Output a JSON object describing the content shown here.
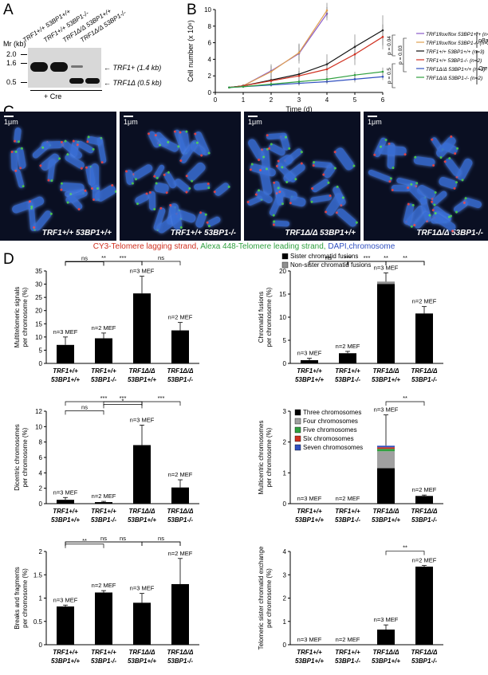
{
  "panels": {
    "a": "A",
    "b": "B",
    "c": "C",
    "d": "D"
  },
  "panelA": {
    "mr_label": "Mr (kb)",
    "ticks": [
      "2.0",
      "1.6",
      "0.5"
    ],
    "lanes": [
      "TRF1+/+ 53BP1+/+",
      "TRF1+/+ 53BP1-/-",
      "TRF1Δ/Δ 53BP1+/+",
      "TRF1Δ/Δ 53BP1-/-"
    ],
    "band_top": "TRF1+ (1.4 kb)",
    "band_bottom": "TRF1Δ (0.5 kb)",
    "treatment": "+ Cre"
  },
  "panelB": {
    "chart_data": {
      "type": "line",
      "xlabel": "Time (d)",
      "ylabel": "Cell number (x 10⁶)",
      "x": [
        0,
        1,
        2,
        3,
        4,
        5,
        6
      ],
      "xlim": [
        0,
        6
      ],
      "ylim": [
        0,
        10
      ],
      "yticks": [
        0,
        2,
        4,
        6,
        8,
        10
      ],
      "series": [
        {
          "name": "TRF1flox/flox 53BP1+/+ (n=2)",
          "color": "#8a5ac8",
          "x": [
            0.5,
            1,
            2,
            3,
            4
          ],
          "y": [
            0.6,
            0.8,
            2.6,
            4.7,
            9.5
          ],
          "err": [
            0,
            0.1,
            0.8,
            1.2,
            0.8
          ]
        },
        {
          "name": "TRF1flox/flox 53BP1-/- (n=2)",
          "color": "#e0a050",
          "x": [
            0.5,
            1,
            2,
            3,
            4
          ],
          "y": [
            0.6,
            0.8,
            2.5,
            4.8,
            9.9
          ],
          "err": [
            0,
            0.1,
            0.7,
            1.0,
            0.9
          ]
        },
        {
          "name": "TRF1+/+ 53BP1+/+ (n=3)",
          "color": "#111111",
          "x": [
            0.5,
            1,
            2,
            3,
            4,
            5,
            6
          ],
          "y": [
            0.6,
            0.8,
            1.5,
            2.2,
            3.4,
            5.5,
            7.5
          ],
          "err": [
            0,
            0.2,
            0.5,
            0.8,
            1.2,
            1.5,
            1.8
          ]
        },
        {
          "name": "TRF1+/+ 53BP1-/- (n=2)",
          "color": "#d03020",
          "x": [
            0.5,
            1,
            2,
            3,
            4,
            5,
            6
          ],
          "y": [
            0.6,
            0.8,
            1.4,
            2.0,
            2.8,
            4.6,
            6.7
          ],
          "err": [
            0,
            0.1,
            0.4,
            0.6,
            1.0,
            1.3,
            1.5
          ]
        },
        {
          "name": "TRF1Δ/Δ 53BP1+/+ (n=3)",
          "color": "#3050c0",
          "x": [
            0.5,
            1,
            2,
            3,
            4,
            5,
            6
          ],
          "y": [
            0.6,
            0.7,
            0.9,
            1.1,
            1.3,
            1.6,
            1.9
          ],
          "err": [
            0,
            0.1,
            0.2,
            0.3,
            0.3,
            0.4,
            0.4
          ]
        },
        {
          "name": "TRF1Δ/Δ 53BP1-/- (n=2)",
          "color": "#30a040",
          "x": [
            0.5,
            1,
            2,
            3,
            4,
            5,
            6
          ],
          "y": [
            0.6,
            0.7,
            1.0,
            1.3,
            1.6,
            2.1,
            2.5
          ],
          "err": [
            0,
            0.1,
            0.2,
            0.3,
            0.4,
            0.4,
            0.5
          ]
        }
      ],
      "group_pbabe": "pBabe",
      "group_cre": "Cre",
      "pvalues": [
        "p = 0.04",
        "p = 0.03",
        "p = 0.5"
      ]
    }
  },
  "panelC": {
    "images": [
      {
        "scale": "1μm",
        "caption": "TRF1+/+ 53BP1+/+"
      },
      {
        "scale": "1μm",
        "caption": "TRF1+/+ 53BP1-/-"
      },
      {
        "scale": "1μm",
        "caption": "TRF1Δ/Δ 53BP1+/+"
      },
      {
        "scale": "1μm",
        "caption": "TRF1Δ/Δ 53BP1-/-"
      }
    ],
    "legend_red": "CY3-Telomere lagging strand,",
    "legend_green": " Alexa 448-Telomere leading strand,",
    "legend_blue": " DAPI,chromosome",
    "colors": {
      "red": "#d03020",
      "green": "#30a040",
      "blue": "#3050c0"
    }
  },
  "panelD": {
    "categories": [
      [
        "TRF1+/+",
        "53BP1+/+"
      ],
      [
        "TRF1+/+",
        "53BP1-/-"
      ],
      [
        "TRF1Δ/Δ",
        "53BP1+/+"
      ],
      [
        "TRF1Δ/Δ",
        "53BP1-/-"
      ]
    ],
    "chart_data": [
      {
        "type": "bar",
        "ylabel": "Multitelomeric signals per chromosome (%)",
        "ylim": [
          0,
          35
        ],
        "yticks": [
          0,
          5,
          10,
          15,
          20,
          25,
          30,
          35
        ],
        "values": [
          7,
          9.5,
          26.5,
          12.5
        ],
        "err": [
          3,
          2,
          6.5,
          3
        ],
        "n": [
          "n=3 MEF",
          "n=2 MEF",
          "n=3 MEF",
          "n=2 MEF"
        ],
        "sig": [
          {
            "a": 0,
            "b": 1,
            "t": "ns"
          },
          {
            "a": 1,
            "b": 2,
            "t": "***"
          },
          {
            "a": 0,
            "b": 2,
            "t": "**"
          },
          {
            "a": 2,
            "b": 3,
            "t": "ns"
          }
        ]
      },
      {
        "type": "bar",
        "stacked": true,
        "ylabel": "Chromatid fusions per chromosome (%)",
        "ylim": [
          0,
          20
        ],
        "yticks": [
          0,
          5,
          10,
          15,
          20
        ],
        "legend": [
          "Sister chromatid fusions",
          "Non-sister chromatid fusions"
        ],
        "colors": [
          "#000000",
          "#909090"
        ],
        "series": [
          {
            "name": "Sister chromatid fusions",
            "values": [
              0.7,
              2.2,
              17.2,
              10.8
            ]
          },
          {
            "name": "Non-sister chromatid fusions",
            "values": [
              0,
              0,
              0.5,
              0
            ]
          }
        ],
        "err": [
          0.4,
          0.4,
          1.9,
          1.5
        ],
        "n": [
          "n=3 MEF",
          "n=2 MEF",
          "n=3 MEF",
          "n=2 MEF"
        ],
        "sig": [
          {
            "a": 0,
            "b": 1,
            "t": "ns"
          },
          {
            "a": 1,
            "b": 2,
            "t": "***"
          },
          {
            "a": 0,
            "b": 2,
            "t": "***"
          },
          {
            "a": 2,
            "b": 3,
            "t": "**"
          },
          {
            "a": 1,
            "b": 3,
            "t": "**"
          }
        ]
      },
      {
        "type": "bar",
        "ylabel": "Dicentric chromosomes per chromosome (%)",
        "ylim": [
          0,
          12
        ],
        "yticks": [
          0,
          2,
          4,
          6,
          8,
          10,
          12
        ],
        "values": [
          0.5,
          0.2,
          7.6,
          2.1
        ],
        "err": [
          0.3,
          0.1,
          2.6,
          1.0
        ],
        "n": [
          "n=3 MEF",
          "n=2 MEF",
          "n=3 MEF",
          "n=2 MEF"
        ],
        "sig": [
          {
            "a": 0,
            "b": 1,
            "t": "ns"
          },
          {
            "a": 1,
            "b": 2,
            "t": "*"
          },
          {
            "a": 0,
            "b": 2,
            "t": "***"
          },
          {
            "a": 1,
            "b": 2,
            "t": "***"
          },
          {
            "a": 2,
            "b": 3,
            "t": "***"
          }
        ]
      },
      {
        "type": "bar",
        "stacked": true,
        "ylabel": "Multicentric chromosomes per chromosome (%)",
        "ylim": [
          0,
          3
        ],
        "yticks": [
          0,
          1,
          2,
          3
        ],
        "legend": [
          "Three chromosomes",
          "Four chromosomes",
          "Five chromosomes",
          "Six chromosomes",
          "Seven chromosomes"
        ],
        "colors": [
          "#000000",
          "#a0a0a0",
          "#30a040",
          "#d03020",
          "#3050c0"
        ],
        "series": [
          {
            "name": "Three chromosomes",
            "values": [
              0,
              0,
              1.15,
              0.25
            ]
          },
          {
            "name": "Four chromosomes",
            "values": [
              0,
              0,
              0.55,
              0
            ]
          },
          {
            "name": "Five chromosomes",
            "values": [
              0,
              0,
              0.08,
              0
            ]
          },
          {
            "name": "Six chromosomes",
            "values": [
              0,
              0,
              0.05,
              0
            ]
          },
          {
            "name": "Seven chromosomes",
            "values": [
              0,
              0,
              0.05,
              0
            ]
          }
        ],
        "err": [
          0,
          0,
          1.0,
          0.03
        ],
        "n": [
          "n=3 MEF",
          "n=2 MEF",
          "n=3 MEF",
          "n=2 MEF"
        ],
        "sig": [
          {
            "a": 2,
            "b": 3,
            "t": "**"
          }
        ]
      },
      {
        "type": "bar",
        "ylabel": "Breaks and fragments per chromosome (%)",
        "ylim": [
          0,
          2
        ],
        "yticks": [
          0,
          0.5,
          1,
          1.5,
          2
        ],
        "values": [
          0.82,
          1.12,
          0.9,
          1.3
        ],
        "err": [
          0.03,
          0.04,
          0.2,
          0.55
        ],
        "n": [
          "n=3 MEF",
          "n=2 MEF",
          "n=3 MEF",
          "n=2 MEF"
        ],
        "sig": [
          {
            "a": 0,
            "b": 1,
            "t": "**"
          },
          {
            "a": 0,
            "b": 2,
            "t": "ns"
          },
          {
            "a": 0,
            "b": 3,
            "t": "ns"
          },
          {
            "a": 2,
            "b": 3,
            "t": "ns"
          }
        ]
      },
      {
        "type": "bar",
        "ylabel": "Telomeric sister chromatid exchange per chromosome (%)",
        "ylim": [
          0,
          4
        ],
        "yticks": [
          0,
          1,
          2,
          3,
          4
        ],
        "values": [
          0,
          0,
          0.65,
          3.35
        ],
        "err": [
          0,
          0,
          0.2,
          0.05
        ],
        "n": [
          "n=3 MEF",
          "n=2 MEF",
          "n=3 MEF",
          "n=2 MEF"
        ],
        "sig": [
          {
            "a": 2,
            "b": 3,
            "t": "**"
          }
        ]
      }
    ]
  }
}
